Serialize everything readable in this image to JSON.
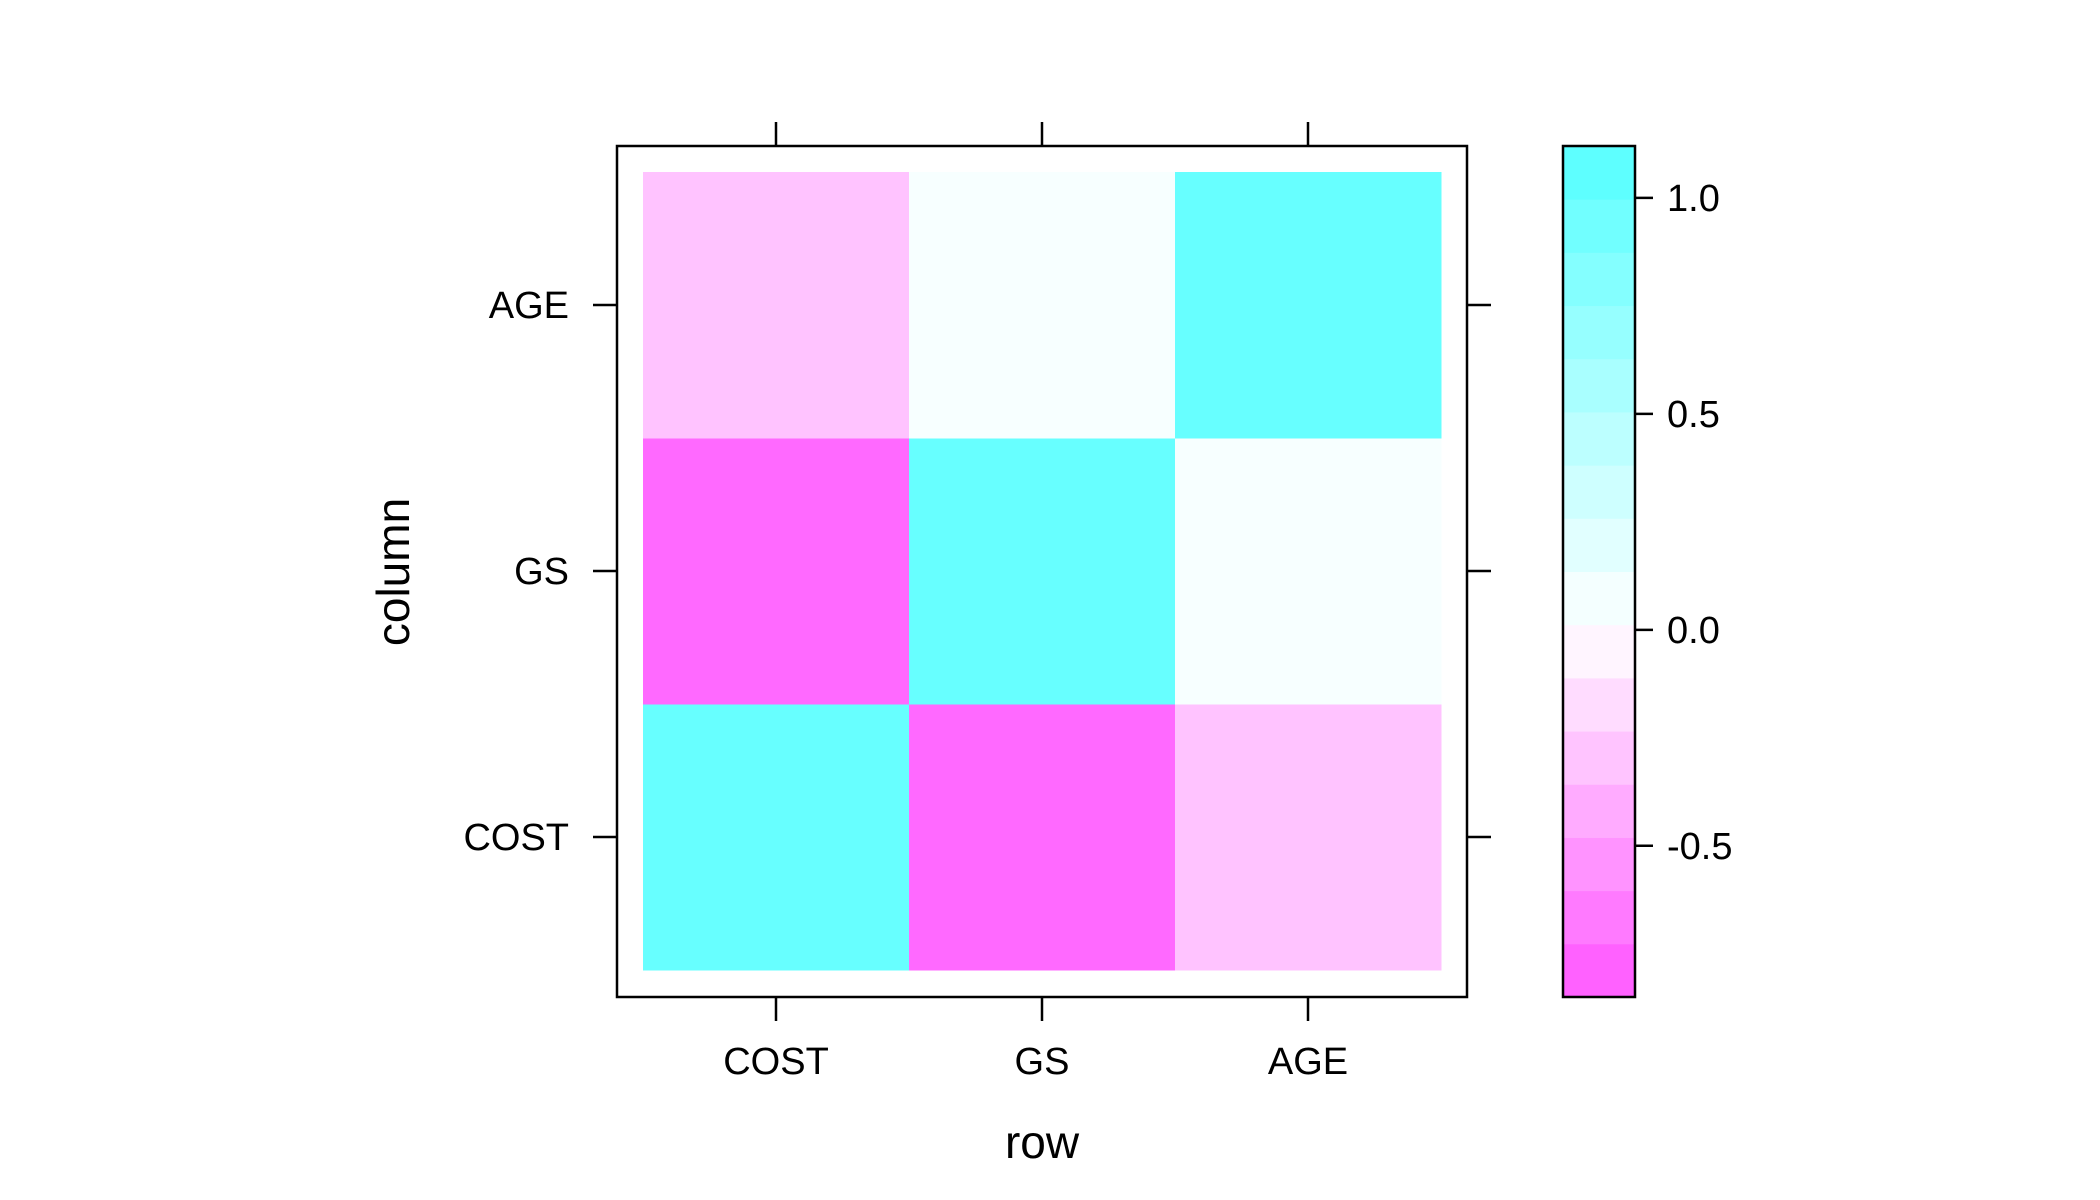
{
  "chart_data": {
    "type": "heatmap",
    "xlabel": "row",
    "ylabel": "column",
    "x_categories": [
      "COST",
      "GS",
      "AGE"
    ],
    "y_categories": [
      "COST",
      "GS",
      "AGE"
    ],
    "cells": [
      {
        "x": "COST",
        "y": "COST",
        "value": 1.0
      },
      {
        "x": "GS",
        "y": "COST",
        "value": -0.75
      },
      {
        "x": "AGE",
        "y": "COST",
        "value": -0.3
      },
      {
        "x": "COST",
        "y": "GS",
        "value": -0.75
      },
      {
        "x": "GS",
        "y": "GS",
        "value": 1.0
      },
      {
        "x": "AGE",
        "y": "GS",
        "value": 0.05
      },
      {
        "x": "COST",
        "y": "AGE",
        "value": -0.3
      },
      {
        "x": "GS",
        "y": "AGE",
        "value": 0.05
      },
      {
        "x": "AGE",
        "y": "AGE",
        "value": 1.0
      }
    ],
    "colorbar": {
      "range": [
        -0.85,
        1.12
      ],
      "ticks": [
        1.0,
        0.5,
        0.0,
        -0.5
      ],
      "tick_labels": [
        "1.0",
        "0.5",
        "0.0",
        "-0.5"
      ],
      "low_color": "#ff55ff",
      "mid_color": "#ffffff",
      "high_color": "#55ffff"
    }
  }
}
